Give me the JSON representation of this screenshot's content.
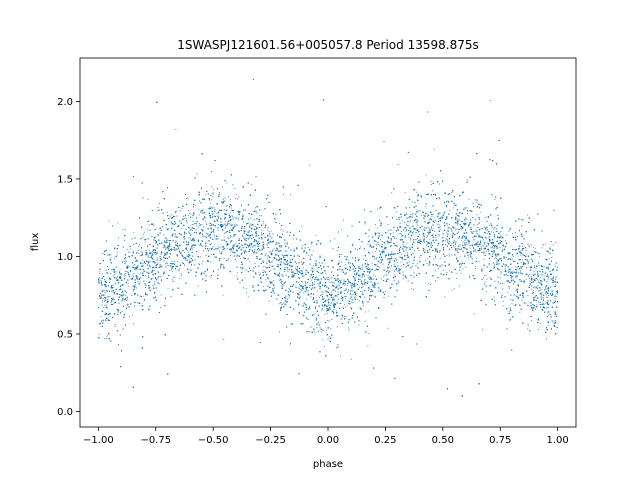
{
  "chart_data": {
    "type": "scatter",
    "title": "1SWASPJ121601.56+005057.8 Period 13598.875s",
    "xlabel": "phase",
    "ylabel": "flux",
    "xlim": [
      -1.08,
      1.08
    ],
    "ylim": [
      -0.1,
      2.28
    ],
    "xticks": [
      -1.0,
      -0.75,
      -0.5,
      -0.25,
      0.0,
      0.25,
      0.5,
      0.75,
      1.0
    ],
    "xtick_labels": [
      "−1.00",
      "−0.75",
      "−0.50",
      "−0.25",
      "0.00",
      "0.25",
      "0.50",
      "0.75",
      "1.00"
    ],
    "yticks": [
      0.0,
      0.5,
      1.0,
      1.5,
      2.0
    ],
    "ytick_labels": [
      "0.0",
      "0.5",
      "1.0",
      "1.5",
      "2.0"
    ],
    "grid": false,
    "legend": "none",
    "marker_color": "#1f77b4",
    "series": [
      {
        "x": [
          -1.0,
          -0.9,
          -0.8,
          -0.7,
          -0.6,
          -0.5,
          -0.4,
          -0.3,
          -0.2,
          -0.1,
          0.0,
          0.1,
          0.2,
          0.3,
          0.4,
          0.5,
          0.6,
          0.7,
          0.8,
          0.9,
          1.0
        ],
        "y": [
          0.75,
          0.8,
          0.93,
          1.05,
          1.14,
          1.17,
          1.14,
          1.06,
          0.94,
          0.82,
          0.75,
          0.8,
          0.93,
          1.05,
          1.14,
          1.17,
          1.14,
          1.06,
          0.94,
          0.82,
          0.75
        ],
        "scatter_sd": 0.14,
        "point_count": 18000
      }
    ]
  }
}
